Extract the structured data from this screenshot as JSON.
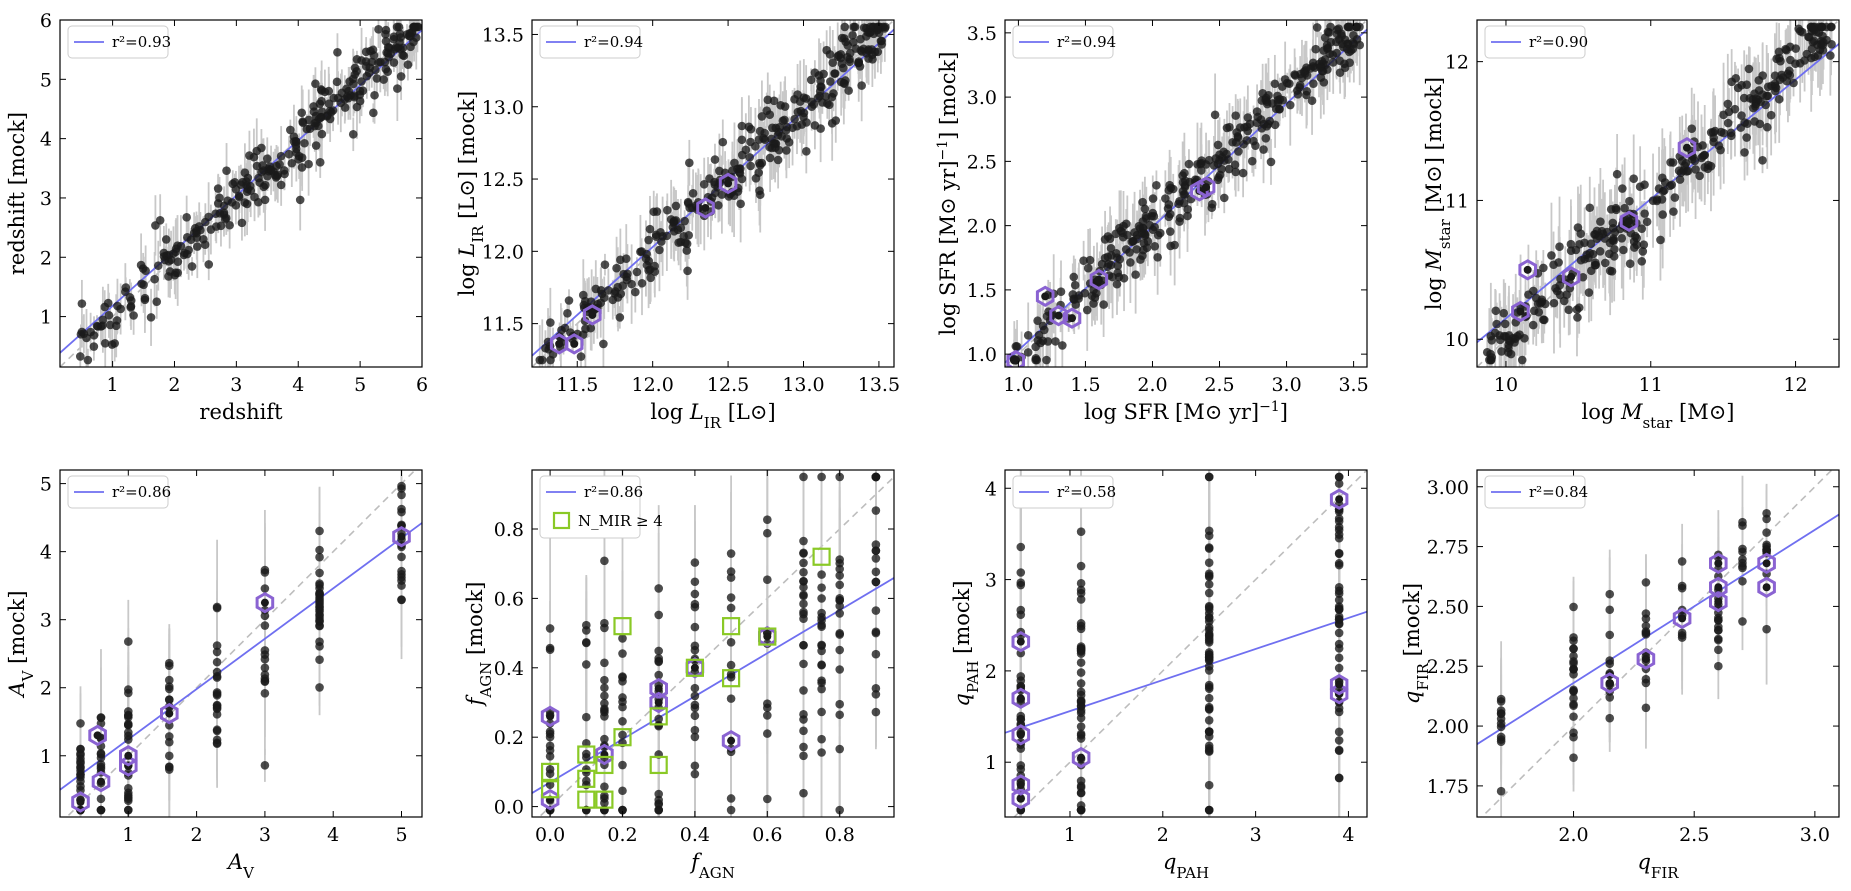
{
  "colors": {
    "fit_line": "#6f6ff0",
    "one_to_one": "#bdbdbd",
    "points": "#1a1a1a",
    "errorbars": "#c8c8c8",
    "hexagon_outline": "#8a63d2",
    "square_outline": "#8ac926"
  },
  "chart_data": [
    {
      "type": "scatter",
      "xlabel": "redshift",
      "ylabel": "redshift [mock]",
      "xlim": [
        0.15,
        6.0
      ],
      "ylim": [
        0.15,
        6.0
      ],
      "xticks": [
        "1",
        "2",
        "3",
        "4",
        "5",
        "6"
      ],
      "xtick_values": [
        1,
        2,
        3,
        4,
        5,
        6
      ],
      "yticks": [
        "1",
        "2",
        "3",
        "4",
        "5",
        "6"
      ],
      "ytick_values": [
        1,
        2,
        3,
        4,
        5,
        6
      ],
      "legend": {
        "fit_label": "r²=0.93",
        "position": "upper-left"
      },
      "fit": {
        "slope": 0.93,
        "intercept": 0.25
      },
      "one_to_one": true,
      "points": {
        "n": 300,
        "xrange": [
          0.45,
          5.95
        ],
        "scatter": 0.28,
        "errorbar": 0.45,
        "distribution": "continuous"
      },
      "highlighted": []
    },
    {
      "type": "scatter",
      "xlabel": "log L_IR [L⊙]",
      "ylabel": "log L_IR [L⊙] [mock]",
      "xlim": [
        11.2,
        13.6
      ],
      "ylim": [
        11.2,
        13.6
      ],
      "xticks": [
        "11.5",
        "12.0",
        "12.5",
        "13.0",
        "13.5"
      ],
      "xtick_values": [
        11.5,
        12.0,
        12.5,
        13.0,
        13.5
      ],
      "yticks": [
        "11.5",
        "12.0",
        "12.5",
        "13.0",
        "13.5"
      ],
      "ytick_values": [
        11.5,
        12.0,
        12.5,
        13.0,
        13.5
      ],
      "legend": {
        "fit_label": "r²=0.94",
        "position": "upper-left"
      },
      "fit": {
        "slope": 0.94,
        "intercept": 0.75
      },
      "one_to_one": true,
      "points": {
        "n": 320,
        "xrange": [
          11.25,
          13.55
        ],
        "scatter": 0.13,
        "errorbar": 0.22,
        "distribution": "continuous"
      },
      "highlighted": [
        [
          11.38,
          11.36
        ],
        [
          11.48,
          11.36
        ],
        [
          11.6,
          11.56
        ],
        [
          12.5,
          12.47
        ],
        [
          12.35,
          12.3
        ]
      ]
    },
    {
      "type": "scatter",
      "xlabel": "log SFR [M⊙ yr⁻¹]",
      "ylabel": "log SFR [M⊙ yr⁻¹] [mock]",
      "xlim": [
        0.9,
        3.6
      ],
      "ylim": [
        0.9,
        3.6
      ],
      "xticks": [
        "1.0",
        "1.5",
        "2.0",
        "2.5",
        "3.0",
        "3.5"
      ],
      "xtick_values": [
        1.0,
        1.5,
        2.0,
        2.5,
        3.0,
        3.5
      ],
      "yticks": [
        "1.0",
        "1.5",
        "2.0",
        "2.5",
        "3.0",
        "3.5"
      ],
      "ytick_values": [
        1.0,
        1.5,
        2.0,
        2.5,
        3.0,
        3.5
      ],
      "legend": {
        "fit_label": "r²=0.94",
        "position": "upper-left"
      },
      "fit": {
        "slope": 0.96,
        "intercept": 0.07
      },
      "one_to_one": true,
      "points": {
        "n": 340,
        "xrange": [
          0.95,
          3.55
        ],
        "scatter": 0.14,
        "errorbar": 0.25,
        "distribution": "continuous"
      },
      "highlighted": [
        [
          0.98,
          0.95
        ],
        [
          1.2,
          1.45
        ],
        [
          1.3,
          1.3
        ],
        [
          1.4,
          1.28
        ],
        [
          1.6,
          1.58
        ],
        [
          2.35,
          2.27
        ],
        [
          2.4,
          2.3
        ]
      ]
    },
    {
      "type": "scatter",
      "xlabel": "log M_star [M⊙]",
      "ylabel": "log M_star [M⊙] [mock]",
      "xlim": [
        9.8,
        12.3
      ],
      "ylim": [
        9.8,
        12.3
      ],
      "xticks": [
        "10",
        "11",
        "12"
      ],
      "xtick_values": [
        10,
        11,
        12
      ],
      "yticks": [
        "10",
        "11",
        "12"
      ],
      "ytick_values": [
        10,
        11,
        12
      ],
      "legend": {
        "fit_label": "r²=0.90",
        "position": "upper-left"
      },
      "fit": {
        "slope": 0.86,
        "intercept": 1.55
      },
      "one_to_one": true,
      "points": {
        "n": 320,
        "xrange": [
          9.85,
          12.25
        ],
        "scatter": 0.14,
        "errorbar": 0.3,
        "distribution": "continuous"
      },
      "highlighted": [
        [
          10.1,
          10.2
        ],
        [
          10.15,
          10.5
        ],
        [
          10.45,
          10.45
        ],
        [
          10.85,
          10.85
        ],
        [
          11.25,
          11.38
        ]
      ]
    },
    {
      "type": "scatter",
      "xlabel": "A_V",
      "ylabel": "A_V [mock]",
      "xlim": [
        0.0,
        5.3
      ],
      "ylim": [
        0.1,
        5.2
      ],
      "xticks": [
        "1",
        "2",
        "3",
        "4",
        "5"
      ],
      "xtick_values": [
        1,
        2,
        3,
        4,
        5
      ],
      "yticks": [
        "1",
        "2",
        "3",
        "4",
        "5"
      ],
      "ytick_values": [
        1,
        2,
        3,
        4,
        5
      ],
      "legend": {
        "fit_label": "r²=0.86",
        "position": "upper-left"
      },
      "fit": {
        "slope": 0.74,
        "intercept": 0.5
      },
      "one_to_one": true,
      "points": {
        "columns": [
          0.3,
          0.6,
          1.0,
          1.6,
          2.3,
          3.0,
          3.8,
          5.0
        ],
        "n": 170,
        "scatter": 0.5,
        "errorbar": 0.8,
        "distribution": "columns"
      },
      "highlighted": [
        [
          0.3,
          0.32
        ],
        [
          0.6,
          0.62
        ],
        [
          0.55,
          1.3
        ],
        [
          1.0,
          0.85
        ],
        [
          1.0,
          1.0
        ],
        [
          1.6,
          1.62
        ],
        [
          3.0,
          3.25
        ],
        [
          5.0,
          4.22
        ]
      ]
    },
    {
      "type": "scatter",
      "xlabel": "f_AGN",
      "ylabel": "f_AGN [mock]",
      "xlim": [
        -0.05,
        0.95
      ],
      "ylim": [
        -0.03,
        0.97
      ],
      "xticks": [
        "0.0",
        "0.2",
        "0.4",
        "0.6",
        "0.8"
      ],
      "xtick_values": [
        0.0,
        0.2,
        0.4,
        0.6,
        0.8
      ],
      "yticks": [
        "0.0",
        "0.2",
        "0.4",
        "0.6",
        "0.8"
      ],
      "ytick_values": [
        0.0,
        0.2,
        0.4,
        0.6,
        0.8
      ],
      "legend": {
        "fit_label": "r²=0.86",
        "square_label": "N_MIR ≥ 4",
        "position": "upper-left"
      },
      "fit": {
        "slope": 0.62,
        "intercept": 0.07
      },
      "one_to_one": true,
      "points": {
        "columns": [
          0.0,
          0.1,
          0.15,
          0.2,
          0.3,
          0.4,
          0.5,
          0.6,
          0.7,
          0.75,
          0.8,
          0.9
        ],
        "n": 230,
        "scatter": 0.2,
        "errorbar": 0.25,
        "distribution": "columns"
      },
      "highlighted": [
        [
          0.0,
          0.26
        ],
        [
          0.0,
          0.02
        ],
        [
          0.15,
          0.15
        ],
        [
          0.3,
          0.34
        ],
        [
          0.3,
          0.3
        ],
        [
          0.4,
          0.4
        ],
        [
          0.5,
          0.19
        ],
        [
          0.6,
          0.49
        ]
      ],
      "squares": [
        [
          0.0,
          0.1
        ],
        [
          0.0,
          0.05
        ],
        [
          0.1,
          0.15
        ],
        [
          0.1,
          0.08
        ],
        [
          0.1,
          0.02
        ],
        [
          0.15,
          0.02
        ],
        [
          0.15,
          0.12
        ],
        [
          0.2,
          0.2
        ],
        [
          0.2,
          0.52
        ],
        [
          0.3,
          0.26
        ],
        [
          0.3,
          0.12
        ],
        [
          0.4,
          0.4
        ],
        [
          0.5,
          0.52
        ],
        [
          0.5,
          0.37
        ],
        [
          0.6,
          0.49
        ],
        [
          0.75,
          0.72
        ]
      ]
    },
    {
      "type": "scatter",
      "xlabel": "q_PAH",
      "ylabel": "q_PAH [mock]",
      "xlim": [
        0.3,
        4.2
      ],
      "ylim": [
        0.4,
        4.2
      ],
      "xticks": [
        "1",
        "2",
        "3",
        "4"
      ],
      "xtick_values": [
        1,
        2,
        3,
        4
      ],
      "yticks": [
        "1",
        "2",
        "3",
        "4"
      ],
      "ytick_values": [
        1,
        2,
        3,
        4
      ],
      "legend": {
        "fit_label": "r²=0.58",
        "position": "upper-left"
      },
      "fit": {
        "slope": 0.34,
        "intercept": 1.22
      },
      "one_to_one": true,
      "points": {
        "columns": [
          0.47,
          1.12,
          2.5,
          3.9
        ],
        "n": 190,
        "scatter": 0.8,
        "errorbar": 1.2,
        "distribution": "columns"
      },
      "highlighted": [
        [
          0.47,
          0.6
        ],
        [
          0.47,
          0.75
        ],
        [
          0.47,
          1.3
        ],
        [
          0.47,
          1.7
        ],
        [
          0.47,
          2.32
        ],
        [
          1.12,
          1.05
        ],
        [
          3.9,
          1.75
        ],
        [
          3.9,
          1.85
        ],
        [
          3.9,
          3.88
        ]
      ]
    },
    {
      "type": "scatter",
      "xlabel": "q_FIR",
      "ylabel": "q_FIR [mock]",
      "xlim": [
        1.6,
        3.1
      ],
      "ylim": [
        1.62,
        3.07
      ],
      "xticks": [
        "2.0",
        "2.5",
        "3.0"
      ],
      "xtick_values": [
        2.0,
        2.5,
        3.0
      ],
      "yticks": [
        "1.75",
        "2.00",
        "2.25",
        "2.50",
        "2.75",
        "3.00"
      ],
      "ytick_values": [
        1.75,
        2.0,
        2.25,
        2.5,
        2.75,
        3.0
      ],
      "legend": {
        "fit_label": "r²=0.84",
        "position": "upper-left"
      },
      "fit": {
        "slope": 0.64,
        "intercept": 0.9
      },
      "one_to_one": true,
      "points": {
        "columns": [
          1.7,
          2.0,
          2.15,
          2.3,
          2.45,
          2.6,
          2.7,
          2.8
        ],
        "n": 110,
        "scatter": 0.12,
        "errorbar": 0.2,
        "distribution": "columns"
      },
      "highlighted": [
        [
          2.15,
          2.18
        ],
        [
          2.3,
          2.28
        ],
        [
          2.45,
          2.45
        ],
        [
          2.6,
          2.52
        ],
        [
          2.6,
          2.58
        ],
        [
          2.6,
          2.68
        ],
        [
          2.8,
          2.58
        ],
        [
          2.8,
          2.68
        ]
      ]
    }
  ]
}
